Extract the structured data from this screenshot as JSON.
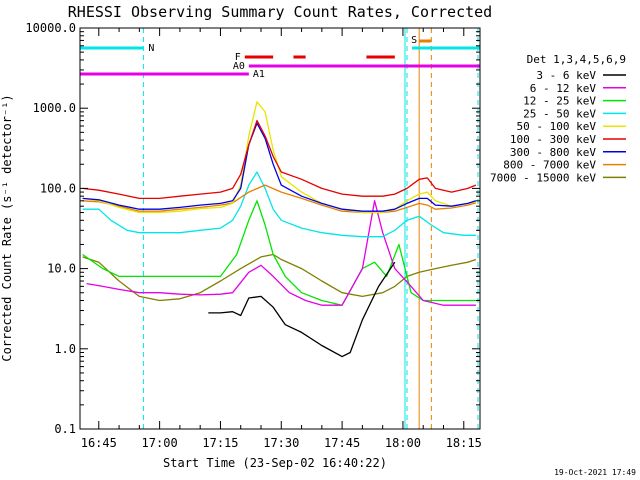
{
  "chart_data": {
    "type": "line",
    "title": "RHESSI Observing Summary Count Rates, Corrected",
    "xlabel": "Start Time (23-Sep-02 16:40:22)",
    "ylabel": "Corrected Count Rate (s⁻¹ detector⁻¹)",
    "xscale": "time-minutes",
    "xlim": [
      "16:40:22",
      "18:19:00"
    ],
    "x_ticks": [
      "16:45",
      "17:00",
      "17:15",
      "17:30",
      "17:45",
      "18:00",
      "18:15"
    ],
    "yscale": "log",
    "ylim": [
      0.1,
      10000
    ],
    "y_ticks": [
      "0.1",
      "1.0",
      "10.0",
      "100.0",
      "1000.0",
      "10000.0"
    ],
    "legend_title": "Det 1,3,4,5,6,9",
    "legend_position": "right",
    "timestamp": "19-Oct-2021 17:49",
    "annotations": {
      "N": "N",
      "F": "F",
      "A0": "A0",
      "A1": "A1",
      "S": "S"
    },
    "intervals": {
      "night_bars": [
        [
          "16:40",
          "16:56"
        ],
        [
          "18:02",
          "18:19"
        ]
      ],
      "night_lines": [
        "16:56",
        "18:01"
      ],
      "flare_segments": [
        [
          "17:21",
          "17:28"
        ],
        [
          "17:33",
          "17:36"
        ],
        [
          "17:51",
          "17:58"
        ]
      ],
      "a0_range": [
        "17:22",
        "18:19"
      ],
      "a1_range": [
        "16:40",
        "17:22"
      ],
      "saa_range": [
        "18:04",
        "18:07"
      ]
    },
    "series": [
      {
        "name": "3 - 6 keV",
        "color": "#000000",
        "x": [
          "17:12",
          "17:15",
          "17:18",
          "17:20",
          "17:22",
          "17:25",
          "17:28",
          "17:31",
          "17:35",
          "17:40",
          "17:45",
          "17:47",
          "17:50",
          "17:54",
          "17:58"
        ],
        "y": [
          2.8,
          2.8,
          2.9,
          2.6,
          4.3,
          4.5,
          3.3,
          2.0,
          1.6,
          1.1,
          0.8,
          0.9,
          2.3,
          6.0,
          12.0
        ]
      },
      {
        "name": "6 - 12 keV",
        "color": "#e600e6",
        "x": [
          "16:42",
          "16:46",
          "16:50",
          "16:55",
          "17:00",
          "17:05",
          "17:10",
          "17:15",
          "17:18",
          "17:22",
          "17:25",
          "17:28",
          "17:32",
          "17:36",
          "17:40",
          "17:45",
          "17:50",
          "17:53",
          "17:55",
          "17:58",
          "18:02",
          "18:05",
          "18:10",
          "18:15",
          "18:18"
        ],
        "y": [
          6.5,
          6.0,
          5.5,
          5.0,
          5.0,
          4.8,
          4.7,
          4.8,
          5.0,
          9.0,
          11.0,
          8.0,
          5.0,
          4.0,
          3.5,
          3.5,
          10.0,
          70.0,
          28.0,
          10.0,
          6.0,
          4.0,
          3.5,
          3.5,
          3.5
        ]
      },
      {
        "name": "12 - 25 keV",
        "color": "#00e600",
        "x": [
          "16:41",
          "16:46",
          "16:50",
          "16:55",
          "17:00",
          "17:05",
          "17:10",
          "17:15",
          "17:19",
          "17:22",
          "17:24",
          "17:26",
          "17:28",
          "17:31",
          "17:35",
          "17:40",
          "17:45",
          "17:50",
          "17:53",
          "17:56",
          "17:59",
          "18:02",
          "18:05",
          "18:08",
          "18:12",
          "18:16",
          "18:19"
        ],
        "y": [
          15.0,
          10.0,
          8.0,
          8.0,
          8.0,
          8.0,
          8.0,
          8.0,
          15.0,
          40.0,
          70.0,
          35.0,
          15.0,
          8.0,
          5.0,
          4.0,
          3.5,
          10.0,
          12.0,
          8.0,
          20.0,
          5.0,
          4.0,
          4.0,
          4.0,
          4.0,
          4.0
        ]
      },
      {
        "name": "25 - 50 keV",
        "color": "#00e6e6",
        "x": [
          "16:41",
          "16:45",
          "16:48",
          "16:52",
          "16:55",
          "17:00",
          "17:05",
          "17:10",
          "17:15",
          "17:18",
          "17:20",
          "17:22",
          "17:24",
          "17:26",
          "17:28",
          "17:30",
          "17:35",
          "17:40",
          "17:45",
          "17:50",
          "17:55",
          "17:58",
          "18:01",
          "18:04",
          "18:07",
          "18:10",
          "18:15",
          "18:18"
        ],
        "y": [
          55,
          55,
          40,
          30,
          28,
          28,
          28,
          30,
          32,
          40,
          60,
          110,
          160,
          100,
          55,
          40,
          32,
          28,
          26,
          25,
          25,
          30,
          40,
          45,
          35,
          28,
          26,
          26
        ]
      },
      {
        "name": "50 - 100 keV",
        "color": "#e6e600",
        "x": [
          "16:41",
          "16:45",
          "16:50",
          "16:55",
          "17:00",
          "17:05",
          "17:10",
          "17:15",
          "17:18",
          "17:20",
          "17:22",
          "17:24",
          "17:26",
          "17:28",
          "17:30",
          "17:35",
          "17:40",
          "17:45",
          "17:50",
          "17:55",
          "17:58",
          "18:01",
          "18:04",
          "18:06",
          "18:08",
          "18:12",
          "18:16",
          "18:18"
        ],
        "y": [
          75,
          70,
          58,
          50,
          50,
          52,
          56,
          58,
          65,
          110,
          450,
          1200,
          900,
          300,
          140,
          90,
          65,
          55,
          50,
          50,
          55,
          70,
          85,
          90,
          70,
          60,
          65,
          68
        ]
      },
      {
        "name": "100 - 300 keV",
        "color": "#e60000",
        "x": [
          "16:41",
          "16:45",
          "16:50",
          "16:55",
          "17:00",
          "17:05",
          "17:10",
          "17:15",
          "17:18",
          "17:20",
          "17:22",
          "17:24",
          "17:26",
          "17:28",
          "17:30",
          "17:35",
          "17:40",
          "17:45",
          "17:50",
          "17:55",
          "17:58",
          "18:01",
          "18:04",
          "18:06",
          "18:08",
          "18:12",
          "18:16",
          "18:18"
        ],
        "y": [
          100,
          95,
          85,
          75,
          75,
          80,
          85,
          90,
          100,
          150,
          350,
          700,
          450,
          250,
          160,
          130,
          100,
          85,
          80,
          80,
          85,
          100,
          130,
          135,
          100,
          90,
          100,
          110
        ]
      },
      {
        "name": "300 - 800 keV",
        "color": "#0000e6",
        "x": [
          "16:41",
          "16:45",
          "16:50",
          "16:55",
          "17:00",
          "17:05",
          "17:10",
          "17:15",
          "17:18",
          "17:20",
          "17:22",
          "17:24",
          "17:26",
          "17:28",
          "17:30",
          "17:35",
          "17:40",
          "17:45",
          "17:50",
          "17:55",
          "17:58",
          "18:01",
          "18:04",
          "18:06",
          "18:08",
          "18:12",
          "18:16",
          "18:18"
        ],
        "y": [
          75,
          72,
          62,
          55,
          55,
          58,
          62,
          65,
          70,
          100,
          350,
          650,
          420,
          200,
          110,
          80,
          65,
          55,
          52,
          52,
          55,
          65,
          75,
          75,
          62,
          60,
          65,
          70
        ]
      },
      {
        "name": "800 - 7000 keV",
        "color": "#e68000",
        "x": [
          "16:41",
          "16:45",
          "16:50",
          "16:55",
          "17:00",
          "17:05",
          "17:10",
          "17:15",
          "17:18",
          "17:22",
          "17:26",
          "17:30",
          "17:35",
          "17:40",
          "17:45",
          "17:50",
          "17:55",
          "17:58",
          "18:01",
          "18:04",
          "18:06",
          "18:08",
          "18:12",
          "18:16",
          "18:18"
        ],
        "y": [
          70,
          68,
          60,
          52,
          52,
          55,
          58,
          62,
          66,
          90,
          110,
          90,
          75,
          62,
          52,
          50,
          50,
          52,
          58,
          65,
          62,
          55,
          57,
          62,
          66
        ]
      },
      {
        "name": "7000 - 15000 keV",
        "color": "#808000",
        "x": [
          "16:41",
          "16:45",
          "16:50",
          "16:55",
          "17:00",
          "17:05",
          "17:10",
          "17:15",
          "17:20",
          "17:25",
          "17:28",
          "17:30",
          "17:35",
          "17:40",
          "17:45",
          "17:50",
          "17:55",
          "17:58",
          "18:01",
          "18:04",
          "18:08",
          "18:12",
          "18:16",
          "18:18"
        ],
        "y": [
          14,
          12,
          7,
          4.5,
          4,
          4.2,
          5,
          7,
          10,
          14,
          15,
          13,
          10,
          7,
          5,
          4.5,
          5,
          6,
          8,
          9,
          10,
          11,
          12,
          13
        ]
      }
    ]
  }
}
